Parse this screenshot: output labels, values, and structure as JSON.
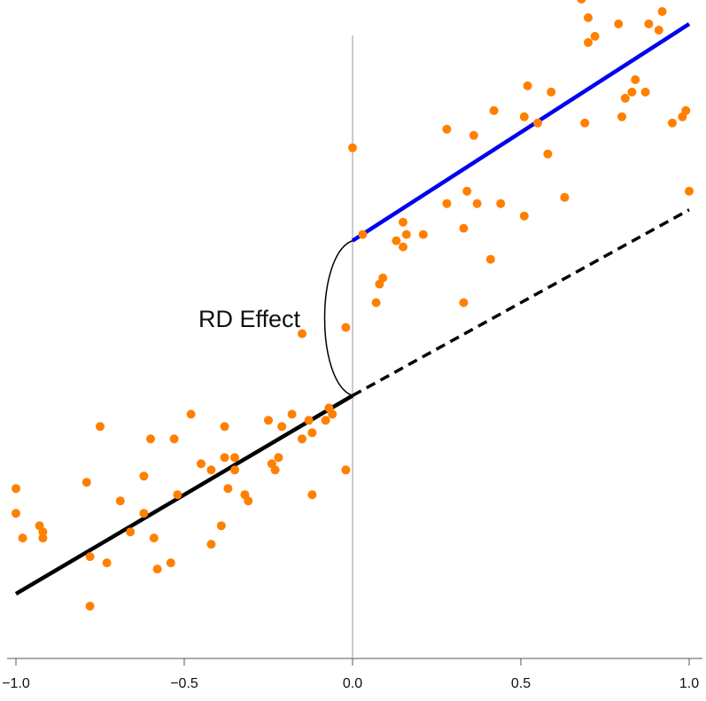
{
  "chart_data": {
    "type": "scatter",
    "title": "",
    "xlabel": "",
    "ylabel": "",
    "xlim": [
      -1.0,
      1.0
    ],
    "x_ticks": [
      -1.0,
      -0.5,
      0.0,
      0.5,
      1.0
    ],
    "x_tick_labels": [
      "−1.0",
      "−0.5",
      "0.0",
      "0.5",
      "1.0"
    ],
    "y_axis_visible": false,
    "ylim": [
      0,
      1
    ],
    "grid": false,
    "cutoff_x": 0.0,
    "annotation": {
      "text": "RD Effect",
      "x": -0.1,
      "y_low": 0.38,
      "y_high": 0.63
    },
    "colors": {
      "points": "#FF8000",
      "left_fit": "#000000",
      "right_fit": "#0000EE",
      "counterfactual": "#000000",
      "cutoff_line": "#999999"
    },
    "series": [
      {
        "role": "observations",
        "points": [
          [
            -1.0,
            0.23
          ],
          [
            -1.0,
            0.19
          ],
          [
            -0.98,
            0.15
          ],
          [
            -0.93,
            0.17
          ],
          [
            -0.92,
            0.15
          ],
          [
            -0.92,
            0.16
          ],
          [
            -0.79,
            0.24
          ],
          [
            -0.78,
            0.12
          ],
          [
            -0.78,
            0.04
          ],
          [
            -0.75,
            0.33
          ],
          [
            -0.73,
            0.11
          ],
          [
            -0.69,
            0.21
          ],
          [
            -0.66,
            0.16
          ],
          [
            -0.62,
            0.25
          ],
          [
            -0.62,
            0.19
          ],
          [
            -0.6,
            0.31
          ],
          [
            -0.59,
            0.15
          ],
          [
            -0.58,
            0.1
          ],
          [
            -0.54,
            0.11
          ],
          [
            -0.53,
            0.31
          ],
          [
            -0.52,
            0.22
          ],
          [
            -0.48,
            0.35
          ],
          [
            -0.45,
            0.27
          ],
          [
            -0.42,
            0.26
          ],
          [
            -0.42,
            0.14
          ],
          [
            -0.39,
            0.17
          ],
          [
            -0.38,
            0.33
          ],
          [
            -0.38,
            0.28
          ],
          [
            -0.37,
            0.23
          ],
          [
            -0.35,
            0.28
          ],
          [
            -0.35,
            0.26
          ],
          [
            -0.32,
            0.22
          ],
          [
            -0.31,
            0.21
          ],
          [
            -0.25,
            0.34
          ],
          [
            -0.24,
            0.27
          ],
          [
            -0.23,
            0.26
          ],
          [
            -0.22,
            0.28
          ],
          [
            -0.21,
            0.33
          ],
          [
            -0.18,
            0.35
          ],
          [
            -0.15,
            0.31
          ],
          [
            -0.15,
            0.48
          ],
          [
            -0.13,
            0.34
          ],
          [
            -0.12,
            0.32
          ],
          [
            -0.12,
            0.22
          ],
          [
            -0.08,
            0.34
          ],
          [
            -0.07,
            0.36
          ],
          [
            -0.06,
            0.35
          ],
          [
            -0.02,
            0.26
          ],
          [
            -0.02,
            0.49
          ],
          [
            0.0,
            0.78
          ],
          [
            0.03,
            0.64
          ],
          [
            0.07,
            0.53
          ],
          [
            0.08,
            0.56
          ],
          [
            0.09,
            0.57
          ],
          [
            0.13,
            0.63
          ],
          [
            0.15,
            0.66
          ],
          [
            0.15,
            0.62
          ],
          [
            0.16,
            0.64
          ],
          [
            0.21,
            0.64
          ],
          [
            0.28,
            0.81
          ],
          [
            0.28,
            0.69
          ],
          [
            0.33,
            0.65
          ],
          [
            0.33,
            0.53
          ],
          [
            0.34,
            0.71
          ],
          [
            0.36,
            0.8
          ],
          [
            0.37,
            0.69
          ],
          [
            0.41,
            0.6
          ],
          [
            0.42,
            0.84
          ],
          [
            0.44,
            0.69
          ],
          [
            0.51,
            0.83
          ],
          [
            0.51,
            0.67
          ],
          [
            0.52,
            0.88
          ],
          [
            0.55,
            0.82
          ],
          [
            0.58,
            0.77
          ],
          [
            0.59,
            0.87
          ],
          [
            0.63,
            0.7
          ],
          [
            0.68,
            1.02
          ],
          [
            0.69,
            0.82
          ],
          [
            0.7,
            0.99
          ],
          [
            0.7,
            0.95
          ],
          [
            0.72,
            0.96
          ],
          [
            0.79,
            0.98
          ],
          [
            0.8,
            0.83
          ],
          [
            0.81,
            0.86
          ],
          [
            0.83,
            0.87
          ],
          [
            0.84,
            0.89
          ],
          [
            0.87,
            0.87
          ],
          [
            0.88,
            0.98
          ],
          [
            0.91,
            0.97
          ],
          [
            0.92,
            1.0
          ],
          [
            0.95,
            0.82
          ],
          [
            0.98,
            0.83
          ],
          [
            0.99,
            0.84
          ],
          [
            1.0,
            0.71
          ]
        ]
      },
      {
        "role": "left-fit",
        "style": "solid",
        "x": [
          -1.0,
          0.0
        ],
        "y": [
          0.06,
          0.38
        ]
      },
      {
        "role": "right-fit",
        "style": "solid",
        "x": [
          0.0,
          1.0
        ],
        "y": [
          0.63,
          0.98
        ]
      },
      {
        "role": "counterfactual",
        "style": "dashed",
        "x": [
          0.0,
          1.0
        ],
        "y": [
          0.38,
          0.68
        ]
      }
    ]
  }
}
